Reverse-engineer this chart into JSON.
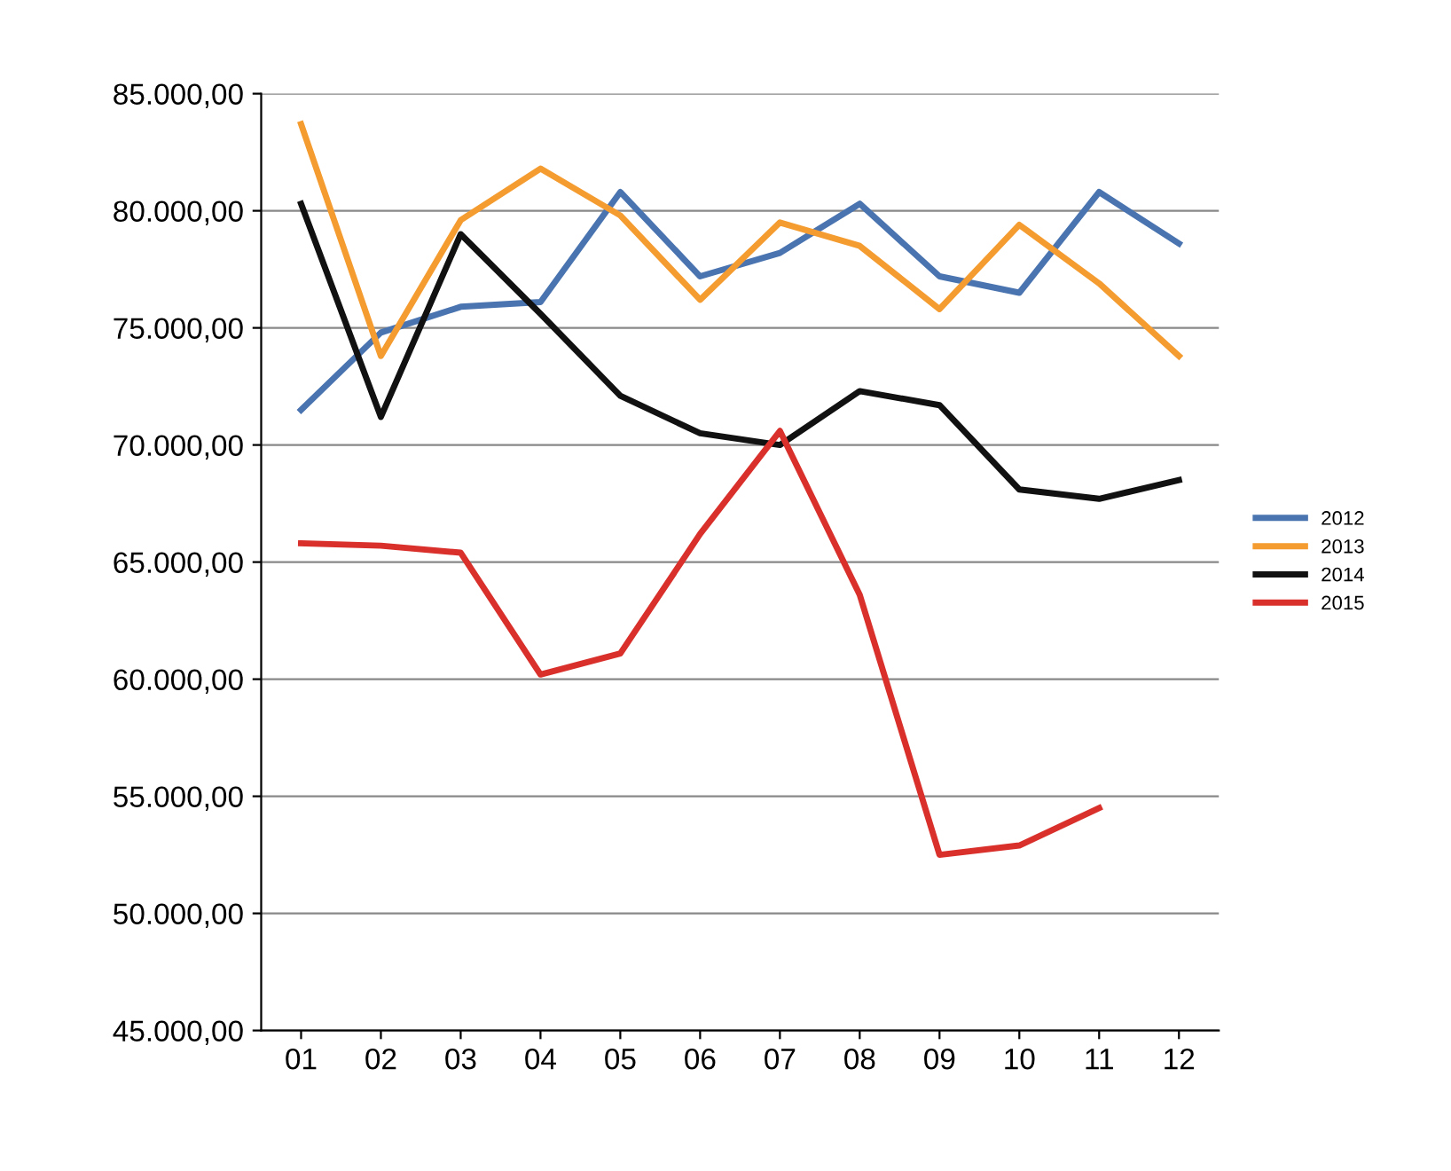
{
  "chart_data": {
    "type": "line",
    "categories": [
      "01",
      "02",
      "03",
      "04",
      "05",
      "06",
      "07",
      "08",
      "09",
      "10",
      "11",
      "12"
    ],
    "series": [
      {
        "name": "2012",
        "color": "#4a74b0",
        "values": [
          71500,
          74800,
          75900,
          76100,
          80800,
          77200,
          78200,
          80300,
          77200,
          76500,
          80800,
          78600
        ]
      },
      {
        "name": "2013",
        "color": "#f59c30",
        "values": [
          83700,
          73800,
          79600,
          81800,
          79800,
          76200,
          79500,
          78500,
          75800,
          79400,
          76900,
          73800
        ]
      },
      {
        "name": "2014",
        "color": "#111111",
        "values": [
          80300,
          71200,
          79000,
          75600,
          72100,
          70500,
          70000,
          72300,
          71700,
          68100,
          67700,
          68500
        ]
      },
      {
        "name": "2015",
        "color": "#d9302c",
        "values": [
          65800,
          65700,
          65400,
          60200,
          61100,
          66200,
          70600,
          63600,
          52500,
          52900,
          54500,
          null
        ]
      }
    ],
    "ylim": [
      45000,
      85000
    ],
    "yticks": [
      {
        "value": 45000,
        "label": "45.000,00"
      },
      {
        "value": 50000,
        "label": "50.000,00"
      },
      {
        "value": 55000,
        "label": "55.000,00"
      },
      {
        "value": 60000,
        "label": "60.000,00"
      },
      {
        "value": 65000,
        "label": "65.000,00"
      },
      {
        "value": 70000,
        "label": "70.000,00"
      },
      {
        "value": 75000,
        "label": "75.000,00"
      },
      {
        "value": 80000,
        "label": "80.000,00"
      },
      {
        "value": 85000,
        "label": "85.000,00"
      }
    ],
    "grid": "y",
    "legend": "right",
    "marker": "none",
    "line_style": "solid"
  }
}
